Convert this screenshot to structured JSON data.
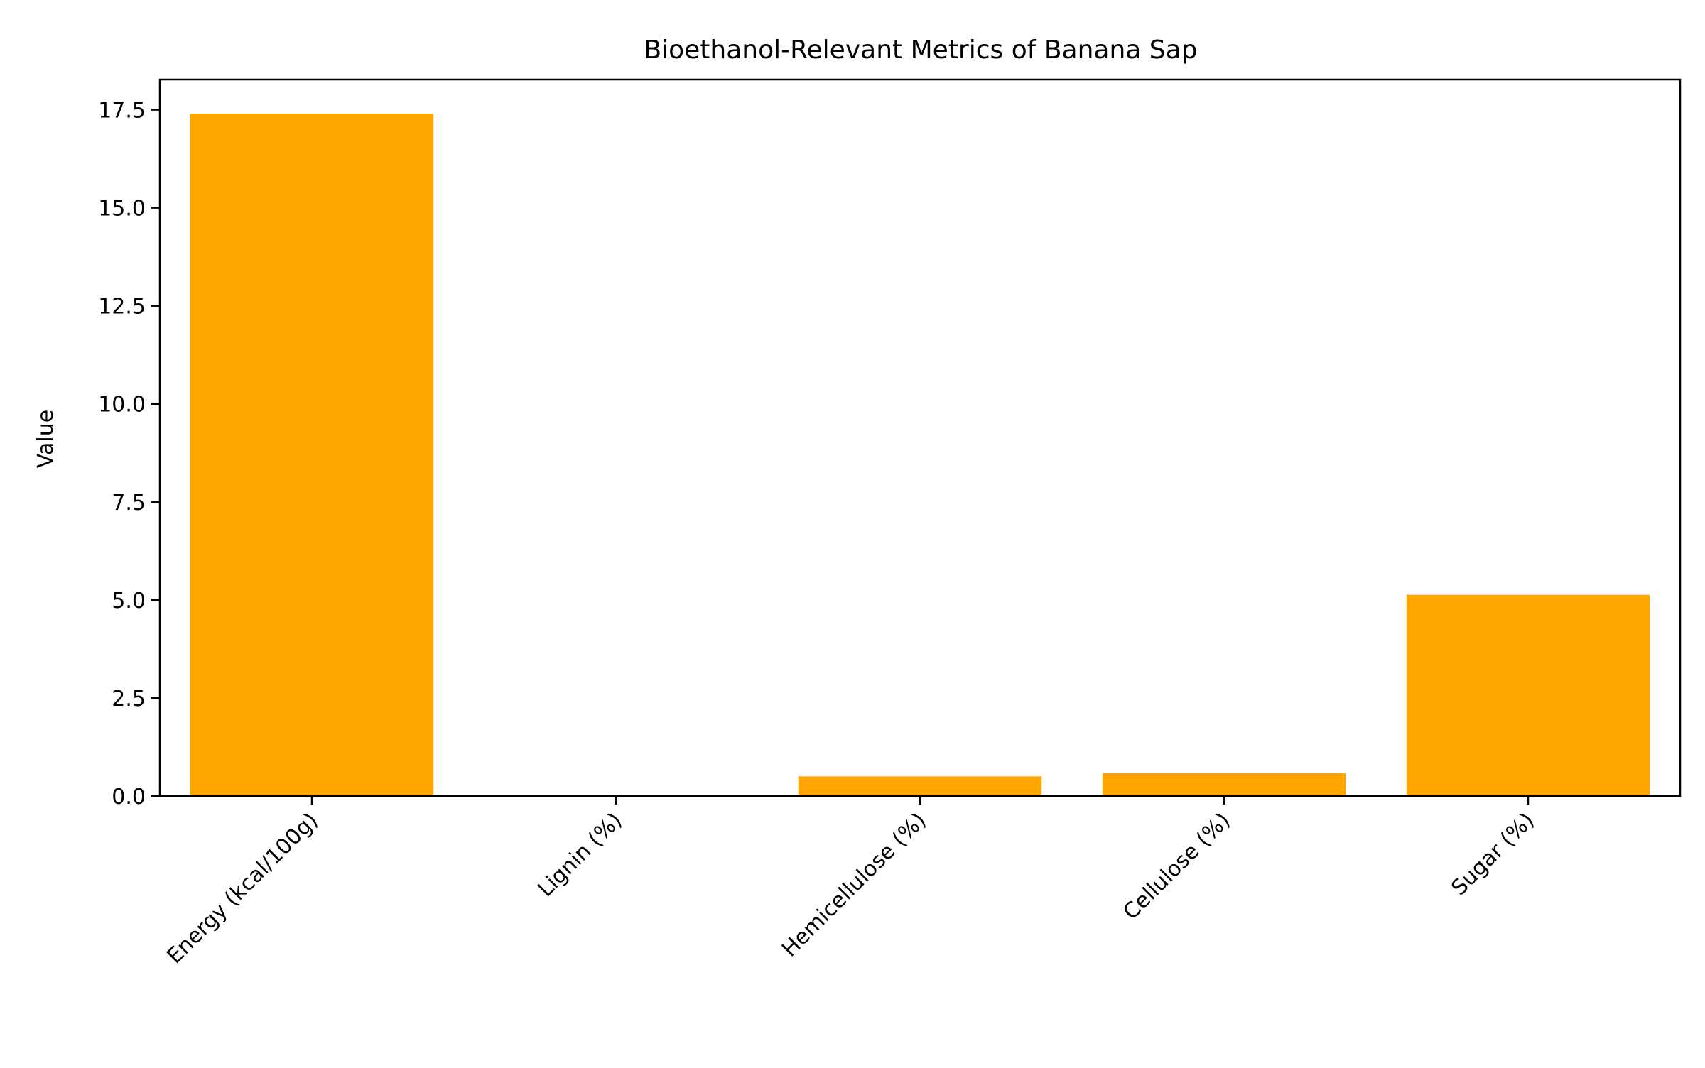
{
  "chart_data": {
    "type": "bar",
    "title": "Bioethanol-Relevant Metrics of Banana Sap",
    "xlabel": "",
    "ylabel": "Value",
    "categories": [
      "Energy (kcal/100g)",
      "Lignin (%)",
      "Hemicellulose (%)",
      "Cellulose (%)",
      "Sugar (%)"
    ],
    "values": [
      17.4,
      0.0,
      0.5,
      0.58,
      5.13
    ],
    "ylim": [
      0,
      18.27
    ],
    "yticks": [
      0.0,
      2.5,
      5.0,
      7.5,
      10.0,
      12.5,
      15.0,
      17.5
    ],
    "ytick_labels": [
      "0.0",
      "2.5",
      "5.0",
      "7.5",
      "10.0",
      "12.5",
      "15.0",
      "17.5"
    ],
    "bar_color": "#FFA500",
    "grid": false,
    "legend": "none"
  }
}
